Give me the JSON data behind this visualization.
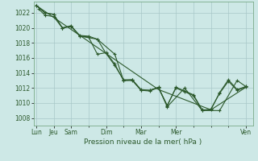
{
  "xlabel": "Pression niveau de la mer( hPa )",
  "bg_color": "#cde8e6",
  "grid_color": "#a8c8c8",
  "line_color": "#2d5a2d",
  "ylim": [
    1007,
    1023.5
  ],
  "yticks": [
    1008,
    1010,
    1012,
    1014,
    1016,
    1018,
    1020,
    1022
  ],
  "xlim": [
    -0.15,
    12.4
  ],
  "x_major_ticks": [
    0,
    1,
    2,
    4,
    6,
    8,
    12
  ],
  "x_minor_ticks": [
    0,
    1,
    2,
    3,
    4,
    5,
    6,
    7,
    8,
    9,
    10,
    11,
    12
  ],
  "x_label_texts": [
    "Lun",
    "Jeu",
    "Sam",
    "Dim",
    "Mar",
    "Mer",
    "Ven"
  ],
  "series": [
    {
      "x": [
        0,
        0.5,
        1.0,
        1.5,
        2.0,
        2.5,
        3.0,
        3.5,
        4.0,
        4.5,
        5.0,
        5.5,
        6.0,
        6.5,
        7.0,
        7.5,
        8.0,
        8.5,
        9.0,
        9.5,
        10.0,
        10.5,
        11.0,
        11.5,
        12.0
      ],
      "y": [
        1023.0,
        1022.0,
        1021.8,
        1020.0,
        1020.3,
        1018.9,
        1018.8,
        1016.5,
        1016.7,
        1015.2,
        1013.0,
        1013.0,
        1011.7,
        1011.6,
        1012.1,
        1009.6,
        1012.1,
        1011.6,
        1011.1,
        1009.1,
        1009.1,
        1011.4,
        1013.1,
        1011.8,
        1012.2
      ],
      "marker": true
    },
    {
      "x": [
        0.15,
        0.5,
        1.0,
        1.5,
        2.0,
        2.5,
        3.0,
        3.5,
        4.0,
        4.5,
        5.0,
        5.5,
        6.0,
        6.5,
        7.0,
        7.5,
        8.0,
        8.5,
        9.0,
        9.5,
        10.0,
        10.5,
        11.0,
        11.5,
        12.0
      ],
      "y": [
        1022.5,
        1021.7,
        1021.5,
        1020.0,
        1020.2,
        1019.0,
        1018.9,
        1018.5,
        1016.6,
        1015.0,
        1013.1,
        1013.1,
        1011.8,
        1011.7,
        1012.0,
        1009.7,
        1012.0,
        1011.5,
        1011.0,
        1009.0,
        1009.2,
        1011.3,
        1012.9,
        1011.7,
        1012.1
      ],
      "marker": true
    },
    {
      "x": [
        0,
        0.5,
        1.0,
        1.5,
        2.0,
        2.5,
        3.5,
        4.5,
        5.0,
        5.5,
        6.0,
        6.5,
        7.0,
        7.5,
        8.5,
        9.5,
        10.5,
        11.5,
        12.0
      ],
      "y": [
        1023.0,
        1022.0,
        1021.8,
        1020.0,
        1020.2,
        1018.9,
        1018.5,
        1016.5,
        1013.0,
        1013.1,
        1011.7,
        1011.7,
        1012.1,
        1009.5,
        1012.0,
        1009.0,
        1009.0,
        1013.0,
        1012.2
      ],
      "marker": true
    },
    {
      "x": [
        0,
        2.0,
        4.0,
        7.0,
        10.0,
        12.0
      ],
      "y": [
        1023.0,
        1019.8,
        1016.6,
        1011.8,
        1009.1,
        1012.1
      ],
      "marker": false
    }
  ]
}
